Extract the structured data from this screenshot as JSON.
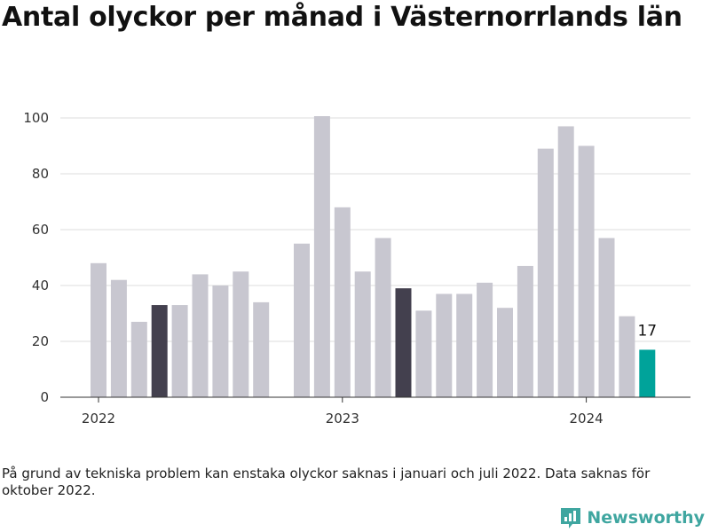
{
  "title": "Antal olyckor per månad i Västernorrlands län",
  "note": "På grund av tekniska problem kan enstaka olyckor saknas i januari och juli 2022. Data saknas för oktober 2022.",
  "brand": {
    "name": "Newsworthy",
    "icon": "bar-chart-logo-icon"
  },
  "colors": {
    "default": "#c8c7d0",
    "highlight": "#43404e",
    "latest": "#00a39a",
    "grid": "#dedede",
    "brand": "#3fa6a0"
  },
  "chart_data": {
    "type": "bar",
    "title": "Antal olyckor per månad i Västernorrlands län",
    "xlabel": "",
    "ylabel": "",
    "ylim": [
      0,
      100
    ],
    "yticks": [
      0,
      20,
      40,
      60,
      80,
      100
    ],
    "xticks": [
      {
        "label": "2022",
        "at": "2022-01"
      },
      {
        "label": "2023",
        "at": "2023-01"
      },
      {
        "label": "2024",
        "at": "2024-01"
      }
    ],
    "grid": true,
    "categories": [
      "2022-01",
      "2022-02",
      "2022-03",
      "2022-04",
      "2022-05",
      "2022-06",
      "2022-07",
      "2022-08",
      "2022-09",
      "2022-10",
      "2022-11",
      "2022-12",
      "2023-01",
      "2023-02",
      "2023-03",
      "2023-04",
      "2023-05",
      "2023-06",
      "2023-07",
      "2023-08",
      "2023-09",
      "2023-10",
      "2023-11",
      "2023-12",
      "2024-01",
      "2024-02",
      "2024-03",
      "2024-04"
    ],
    "values": [
      48,
      42,
      27,
      33,
      33,
      44,
      40,
      45,
      34,
      null,
      55,
      101,
      68,
      45,
      57,
      39,
      31,
      37,
      37,
      41,
      32,
      47,
      89,
      97,
      90,
      57,
      29,
      17
    ],
    "highlight": [
      "2022-04",
      "2023-04"
    ],
    "latest": "2024-04",
    "data_labels": [
      {
        "at": "2024-04",
        "text": "17"
      }
    ]
  }
}
